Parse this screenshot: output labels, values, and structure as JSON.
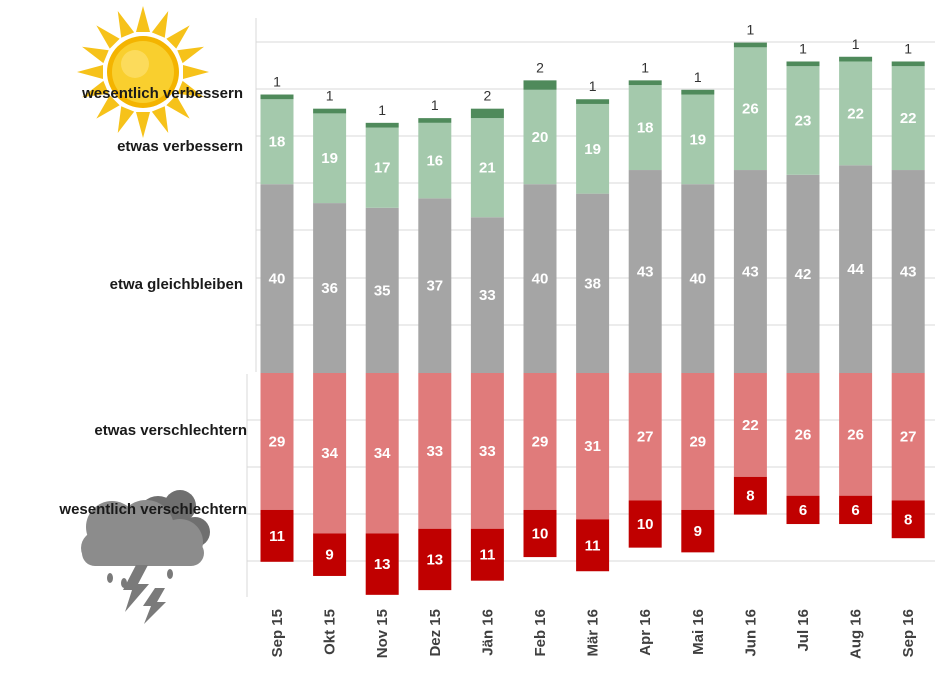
{
  "chart_data": {
    "type": "bar",
    "stacked": "diverging",
    "categories": [
      "Sep 15",
      "Okt 15",
      "Nov 15",
      "Dez 15",
      "Jän 16",
      "Feb 16",
      "Mär 16",
      "Apr 16",
      "Mai 16",
      "Jun 16",
      "Jul 16",
      "Aug 16",
      "Sep 16"
    ],
    "series": [
      {
        "name": "wesentlich verbessern",
        "values": [
          1,
          1,
          1,
          1,
          2,
          2,
          1,
          1,
          1,
          1,
          1,
          1,
          1
        ],
        "color": "#4f8a5b"
      },
      {
        "name": "etwas verbessern",
        "values": [
          18,
          19,
          17,
          16,
          21,
          20,
          19,
          18,
          19,
          26,
          23,
          22,
          22
        ],
        "color": "#a4c9ac"
      },
      {
        "name": "etwa gleichbleiben",
        "values": [
          40,
          36,
          35,
          37,
          33,
          40,
          38,
          43,
          40,
          43,
          42,
          44,
          43
        ],
        "color": "#a5a5a5"
      },
      {
        "name": "etwas verschlechtern",
        "values": [
          29,
          34,
          34,
          33,
          33,
          29,
          31,
          27,
          29,
          22,
          26,
          26,
          27
        ],
        "color": "#e07b7b"
      },
      {
        "name": "wesentlich verschlechtern",
        "values": [
          11,
          9,
          13,
          13,
          11,
          10,
          11,
          10,
          9,
          8,
          6,
          6,
          8
        ],
        "color": "#c00000"
      }
    ],
    "grid": true,
    "icons": [
      "sun-icon",
      "thundercloud-icon"
    ]
  }
}
